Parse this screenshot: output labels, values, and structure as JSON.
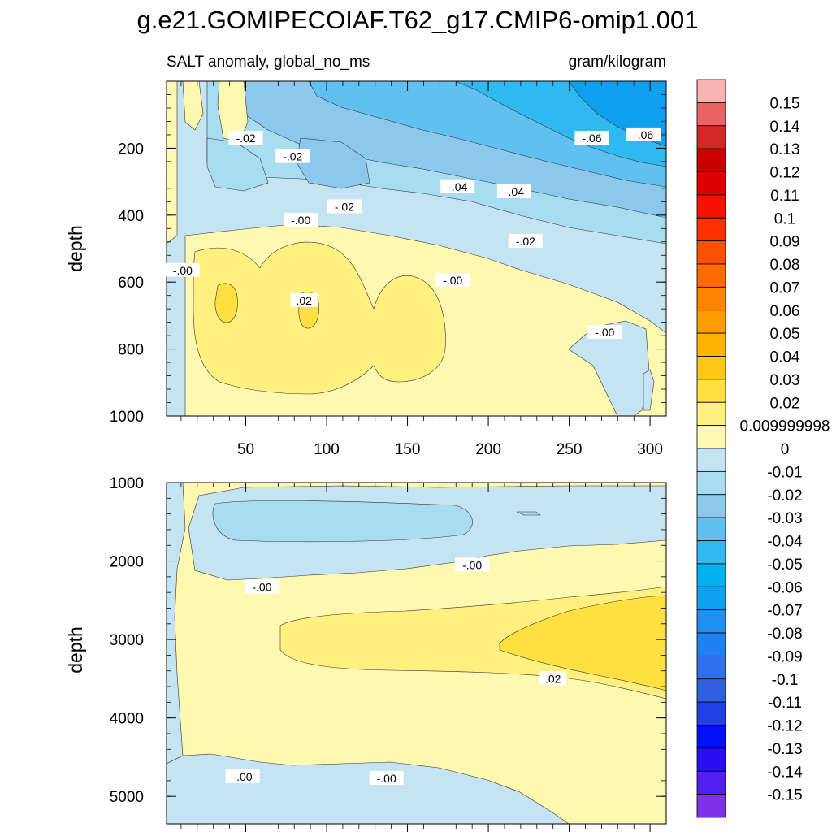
{
  "title": "g.e21.GOMIPECOIAF.T62_g17.CMIP6-omip1.001",
  "panel_left_label": "SALT anomaly, global_no_ms",
  "panel_right_label": "gram/kilogram",
  "chart_data": [
    {
      "type": "contour",
      "panel": "upper",
      "ylabel": "depth",
      "xlabel": "",
      "xlim": [
        1,
        310
      ],
      "ylim": [
        1000,
        0
      ],
      "x_ticks": [
        50,
        100,
        150,
        200,
        250,
        300
      ],
      "y_ticks": [
        200,
        400,
        600,
        800,
        1000
      ],
      "contour_labels": [
        {
          "text": "-.02",
          "x": 50,
          "y": 170
        },
        {
          "text": "-.02",
          "x": 79,
          "y": 225
        },
        {
          "text": "-.02",
          "x": 111,
          "y": 375
        },
        {
          "text": "-.00",
          "x": 84,
          "y": 415
        },
        {
          "text": "-.00",
          "x": 11,
          "y": 565
        },
        {
          "text": ".02",
          "x": 86,
          "y": 655
        },
        {
          "text": "-.04",
          "x": 181,
          "y": 315
        },
        {
          "text": "-.04",
          "x": 216,
          "y": 330
        },
        {
          "text": "-.02",
          "x": 223,
          "y": 478
        },
        {
          "text": "-.00",
          "x": 178,
          "y": 595
        },
        {
          "text": "-.06",
          "x": 264,
          "y": 170
        },
        {
          "text": "-.06",
          "x": 296,
          "y": 160
        },
        {
          "text": "-.00",
          "x": 272,
          "y": 750
        }
      ]
    },
    {
      "type": "contour",
      "panel": "lower",
      "ylabel": "depth",
      "xlabel": "",
      "xlim": [
        1,
        310
      ],
      "ylim": [
        5350,
        1000
      ],
      "y_ticks": [
        1000,
        2000,
        3000,
        4000,
        5000
      ],
      "contour_labels": [
        {
          "text": "-.00",
          "x": 190,
          "y": 2050
        },
        {
          "text": "-.00",
          "x": 60,
          "y": 2330
        },
        {
          "text": ".02",
          "x": 240,
          "y": 3500
        },
        {
          "text": "-.00",
          "x": 48,
          "y": 4750
        },
        {
          "text": "-.00",
          "x": 137,
          "y": 4770
        }
      ]
    }
  ],
  "colorbar": {
    "labels": [
      "0.15",
      "0.14",
      "0.13",
      "0.12",
      "0.11",
      "0.1",
      "0.09",
      "0.08",
      "0.07",
      "0.06",
      "0.05",
      "0.04",
      "0.03",
      "0.02",
      "0.009999998",
      "0",
      "-0.01",
      "-0.02",
      "-0.03",
      "-0.04",
      "-0.05",
      "-0.06",
      "-0.07",
      "-0.08",
      "-0.09",
      "-0.1",
      "-0.11",
      "-0.12",
      "-0.13",
      "-0.14",
      "-0.15"
    ],
    "colors": [
      "#fbb4b4",
      "#e86464",
      "#d42828",
      "#c80000",
      "#e00000",
      "#f81000",
      "#ff3000",
      "#ff5000",
      "#ff6a00",
      "#ff8400",
      "#ff9c00",
      "#ffb400",
      "#ffc818",
      "#ffe040",
      "#fff080",
      "#fff8b0",
      "#c4e4f4",
      "#a8dcf0",
      "#8cc8ec",
      "#60c0f0",
      "#30b8f0",
      "#00b0f0",
      "#10a0f0",
      "#2090f0",
      "#2080f0",
      "#3070e8",
      "#3060e0",
      "#2040e8",
      "#0010f8",
      "#2810f0",
      "#5020f0",
      "#8030e8"
    ]
  },
  "colors": {
    "y1": "#fff8b0",
    "y2": "#fff080",
    "y3": "#ffe040",
    "y4": "#ffc818",
    "b1": "#c4e4f4",
    "b2": "#a8dcf0",
    "b3": "#8cc8ec",
    "b4": "#60c0f0",
    "b5": "#30b8f0",
    "b6": "#10a0f0",
    "b7": "#2090f0"
  }
}
